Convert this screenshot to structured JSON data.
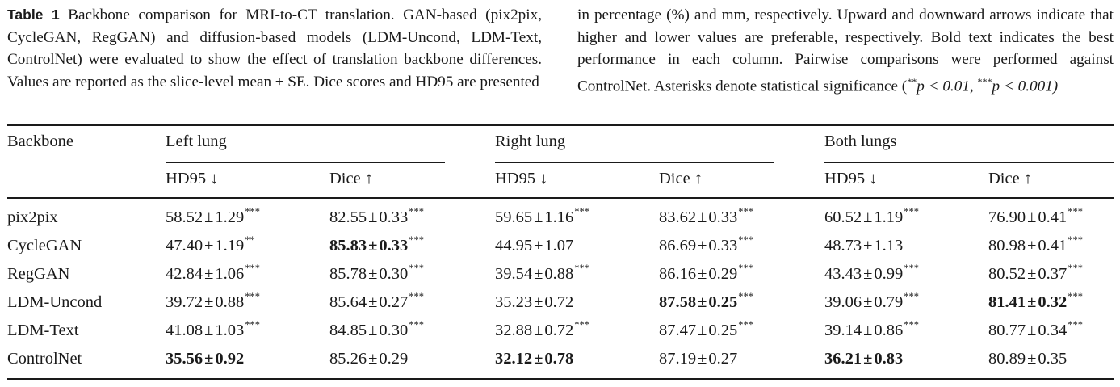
{
  "caption": {
    "label": "Table 1",
    "text_left": "Backbone comparison for MRI-to-CT translation. GAN-based (pix2pix, CycleGAN, RegGAN) and diffusion-based models (LDM-Uncond, LDM-Text, ControlNet) were evaluated to show the effect of translation backbone differences. Values are reported as the slice-level mean ± SE. Dice scores and HD95 are presented",
    "text_right_main": "in percentage (%) and mm, respectively. Upward and downward arrows indicate that higher and lower values are preferable, respectively. Bold text indicates the best performance in each column. Pairwise comparisons were performed against ControlNet. Asterisks denote statistical significance (",
    "sig1_stars": "**",
    "sig1_expr": "p < 0.01, ",
    "sig2_stars": "***",
    "sig2_expr": "p < 0.001)"
  },
  "table": {
    "row_header": "Backbone",
    "groups": [
      "Left lung",
      "Right lung",
      "Both lungs"
    ],
    "metrics": [
      "HD95 ↓",
      "Dice ↑",
      "HD95 ↓",
      "Dice ↑",
      "HD95 ↓",
      "Dice ↑"
    ],
    "rows": [
      {
        "name": "pix2pix",
        "cells": [
          {
            "mean": "58.52",
            "se": "1.29",
            "sig": "***",
            "bold": false
          },
          {
            "mean": "82.55",
            "se": "0.33",
            "sig": "***",
            "bold": false
          },
          {
            "mean": "59.65",
            "se": "1.16",
            "sig": "***",
            "bold": false
          },
          {
            "mean": "83.62",
            "se": "0.33",
            "sig": "***",
            "bold": false
          },
          {
            "mean": "60.52",
            "se": "1.19",
            "sig": "***",
            "bold": false
          },
          {
            "mean": "76.90",
            "se": "0.41",
            "sig": "***",
            "bold": false
          }
        ]
      },
      {
        "name": "CycleGAN",
        "cells": [
          {
            "mean": "47.40",
            "se": "1.19",
            "sig": "**",
            "bold": false
          },
          {
            "mean": "85.83",
            "se": "0.33",
            "sig": "***",
            "bold": true
          },
          {
            "mean": "44.95",
            "se": "1.07",
            "sig": "",
            "bold": false
          },
          {
            "mean": "86.69",
            "se": "0.33",
            "sig": "***",
            "bold": false
          },
          {
            "mean": "48.73",
            "se": "1.13",
            "sig": "",
            "bold": false
          },
          {
            "mean": "80.98",
            "se": "0.41",
            "sig": "***",
            "bold": false
          }
        ]
      },
      {
        "name": "RegGAN",
        "cells": [
          {
            "mean": "42.84",
            "se": "1.06",
            "sig": "***",
            "bold": false
          },
          {
            "mean": "85.78",
            "se": "0.30",
            "sig": "***",
            "bold": false
          },
          {
            "mean": "39.54",
            "se": "0.88",
            "sig": "***",
            "bold": false
          },
          {
            "mean": "86.16",
            "se": "0.29",
            "sig": "***",
            "bold": false
          },
          {
            "mean": "43.43",
            "se": "0.99",
            "sig": "***",
            "bold": false
          },
          {
            "mean": "80.52",
            "se": "0.37",
            "sig": "***",
            "bold": false
          }
        ]
      },
      {
        "name": "LDM-Uncond",
        "cells": [
          {
            "mean": "39.72",
            "se": "0.88",
            "sig": "***",
            "bold": false
          },
          {
            "mean": "85.64",
            "se": "0.27",
            "sig": "***",
            "bold": false
          },
          {
            "mean": "35.23",
            "se": "0.72",
            "sig": "",
            "bold": false
          },
          {
            "mean": "87.58",
            "se": "0.25",
            "sig": "***",
            "bold": true
          },
          {
            "mean": "39.06",
            "se": "0.79",
            "sig": "***",
            "bold": false
          },
          {
            "mean": "81.41",
            "se": "0.32",
            "sig": "***",
            "bold": true
          }
        ]
      },
      {
        "name": "LDM-Text",
        "cells": [
          {
            "mean": "41.08",
            "se": "1.03",
            "sig": "***",
            "bold": false
          },
          {
            "mean": "84.85",
            "se": "0.30",
            "sig": "***",
            "bold": false
          },
          {
            "mean": "32.88",
            "se": "0.72",
            "sig": "***",
            "bold": false
          },
          {
            "mean": "87.47",
            "se": "0.25",
            "sig": "***",
            "bold": false
          },
          {
            "mean": "39.14",
            "se": "0.86",
            "sig": "***",
            "bold": false
          },
          {
            "mean": "80.77",
            "se": "0.34",
            "sig": "***",
            "bold": false
          }
        ]
      },
      {
        "name": "ControlNet",
        "cells": [
          {
            "mean": "35.56",
            "se": "0.92",
            "sig": "",
            "bold": true
          },
          {
            "mean": "85.26",
            "se": "0.29",
            "sig": "",
            "bold": false
          },
          {
            "mean": "32.12",
            "se": "0.78",
            "sig": "",
            "bold": true
          },
          {
            "mean": "87.19",
            "se": "0.27",
            "sig": "",
            "bold": false
          },
          {
            "mean": "36.21",
            "se": "0.83",
            "sig": "",
            "bold": true
          },
          {
            "mean": "80.89",
            "se": "0.35",
            "sig": "",
            "bold": false
          }
        ]
      }
    ]
  }
}
